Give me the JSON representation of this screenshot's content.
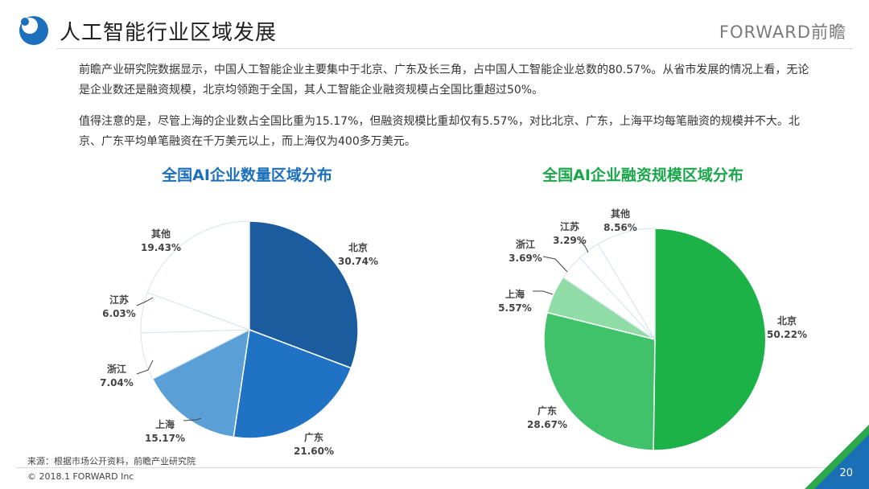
{
  "header": {
    "title": "人工智能行业区域发展",
    "logo_text": "FORWARD前瞻"
  },
  "body": {
    "paragraph1": "前瞻产业研究院数据显示，中国人工智能企业主要集中于北京、广东及长三角，占中国人工智能企业总数的80.57%。从省市发展的情况上看，无论是企业数还是融资规模，北京均领跑于全国，其人工智能企业融资规模占全国比重超过50%。",
    "paragraph2": "值得注意的是，尽管上海的企业数占全国比重为15.17%，但融资规模比重却仅有5.57%，对比北京、广东，上海平均每笔融资的规模并不大。北京、广东平均单笔融资在千万美元以上，而上海仅为400多万美元。"
  },
  "footer": {
    "source": "来源：根据市场公开资料，前瞻产业研究院",
    "copyright": "© 2018.1 FORWARD Inc",
    "page_number": "20"
  },
  "colors": {
    "blue_accent": "#1c6fba",
    "green_accent": "#1aa64a"
  },
  "chart_data": [
    {
      "type": "pie",
      "title": "全国AI企业数量区域分布",
      "slices": [
        {
          "name": "北京",
          "value": 30.74,
          "label": "30.74%",
          "color": "#1a5c9e"
        },
        {
          "name": "广东",
          "value": 21.6,
          "label": "21.60%",
          "color": "#1f72c4"
        },
        {
          "name": "上海",
          "value": 15.17,
          "label": "15.17%",
          "color": "#5aa0d6"
        },
        {
          "name": "浙江",
          "value": 7.04,
          "label": "7.04%",
          "color": "#ffffff"
        },
        {
          "name": "江苏",
          "value": 6.03,
          "label": "6.03%",
          "color": "#ffffff"
        },
        {
          "name": "其他",
          "value": 19.43,
          "label": "19.43%",
          "color": "#ffffff"
        }
      ]
    },
    {
      "type": "pie",
      "title": "全国AI企业融资规模区域分布",
      "slices": [
        {
          "name": "北京",
          "value": 50.22,
          "label": "50.22%",
          "color": "#1db248"
        },
        {
          "name": "广东",
          "value": 28.67,
          "label": "28.67%",
          "color": "#3fc26a"
        },
        {
          "name": "上海",
          "value": 5.57,
          "label": "5.57%",
          "color": "#8fdca7"
        },
        {
          "name": "浙江",
          "value": 3.69,
          "label": "3.69%",
          "color": "#ffffff"
        },
        {
          "name": "江苏",
          "value": 3.29,
          "label": "3.29%",
          "color": "#ffffff"
        },
        {
          "name": "其他",
          "value": 8.56,
          "label": "8.56%",
          "color": "#ffffff"
        }
      ]
    }
  ]
}
